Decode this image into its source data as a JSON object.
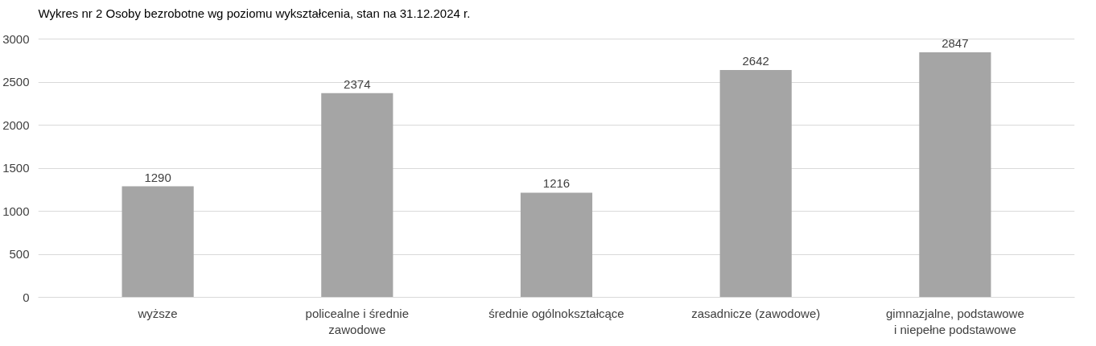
{
  "chart_data": {
    "type": "bar",
    "title": "Wykres nr 2 Osoby bezrobotne wg poziomu wykształcenia, stan na 31.12.2024 r.",
    "categories": [
      "wyższe",
      "policealne i średnie zawodowe",
      "średnie ogólnokształcące",
      "zasadnicze (zawodowe)",
      "gimnazjalne, podstawowe i niepełne podstawowe"
    ],
    "values": [
      1290,
      2374,
      1216,
      2642,
      2847
    ],
    "color": "#a5a5a5",
    "ylim": [
      0,
      3000
    ],
    "yticks": [
      0,
      500,
      1000,
      1500,
      2000,
      2500,
      3000
    ],
    "grid": "y",
    "data_labels": true
  }
}
